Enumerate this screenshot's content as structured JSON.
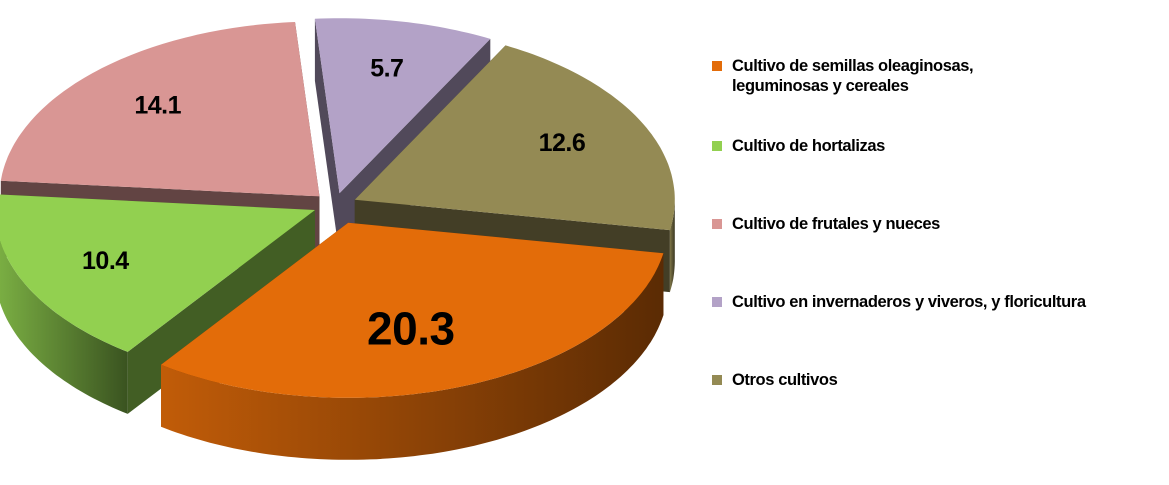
{
  "chart_data": {
    "type": "pie",
    "categories": [
      "Cultivo de semillas oleaginosas,\n leguminosas y cereales",
      "Cultivo de hortalizas",
      "Cultivo de frutales y nueces",
      "Cultivo en invernaderos y viveros, y floricultura",
      "Otros cultivos"
    ],
    "values": [
      20.3,
      10.4,
      14.1,
      5.7,
      12.6
    ],
    "colors": [
      "#e36c09",
      "#92d050",
      "#d99694",
      "#b3a2c7",
      "#948a54"
    ],
    "legend": "right"
  }
}
